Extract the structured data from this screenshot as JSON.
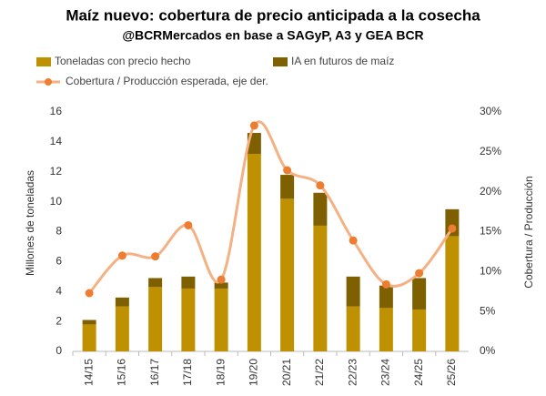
{
  "chart_data": {
    "type": "bar-line",
    "title": "Maíz nuevo: cobertura de precio anticipada a la cosecha",
    "subtitle": "@BCRMercados en base a SAGyP, A3 y GEA BCR",
    "y_label": "Millones de toneladas",
    "y2_label": "Cobertura / Producción",
    "categories": [
      "14/15",
      "15/16",
      "16/17",
      "17/18",
      "18/19",
      "19/20",
      "20/21",
      "21/22",
      "22/23",
      "23/24",
      "24/25",
      "25/26"
    ],
    "series": [
      {
        "name": "Toneladas con precio hecho",
        "color": "#BF9000",
        "stack": true,
        "values": [
          1.8,
          3.0,
          4.3,
          4.2,
          4.2,
          13.2,
          10.2,
          8.4,
          3.0,
          2.9,
          2.8,
          7.7
        ]
      },
      {
        "name": "IA en futuros de maíz",
        "color": "#7F6000",
        "stack": true,
        "values": [
          0.3,
          0.6,
          0.6,
          0.8,
          0.4,
          1.4,
          1.6,
          2.2,
          2.0,
          1.5,
          2.1,
          1.8
        ]
      },
      {
        "name": "Cobertura / Producción esperada, eje der.",
        "color": "#F4B183",
        "marker_color": "#ED7D31",
        "axis": "y2",
        "values": [
          7.3,
          12.0,
          11.9,
          15.8,
          9.0,
          28.3,
          22.7,
          20.8,
          13.9,
          8.4,
          9.8,
          15.4
        ]
      }
    ],
    "ylim": [
      0,
      16
    ],
    "yticks": [
      0,
      2,
      4,
      6,
      8,
      10,
      12,
      14,
      16
    ],
    "y2lim": [
      0,
      30
    ],
    "y2ticks": [
      {
        "value": 0,
        "label": "0%"
      },
      {
        "value": 5,
        "label": "5%"
      },
      {
        "value": 10,
        "label": "10%"
      },
      {
        "value": 15,
        "label": "15%"
      },
      {
        "value": 20,
        "label": "20%"
      },
      {
        "value": 25,
        "label": "25%"
      },
      {
        "value": 30,
        "label": "30%"
      }
    ],
    "grid": false
  }
}
